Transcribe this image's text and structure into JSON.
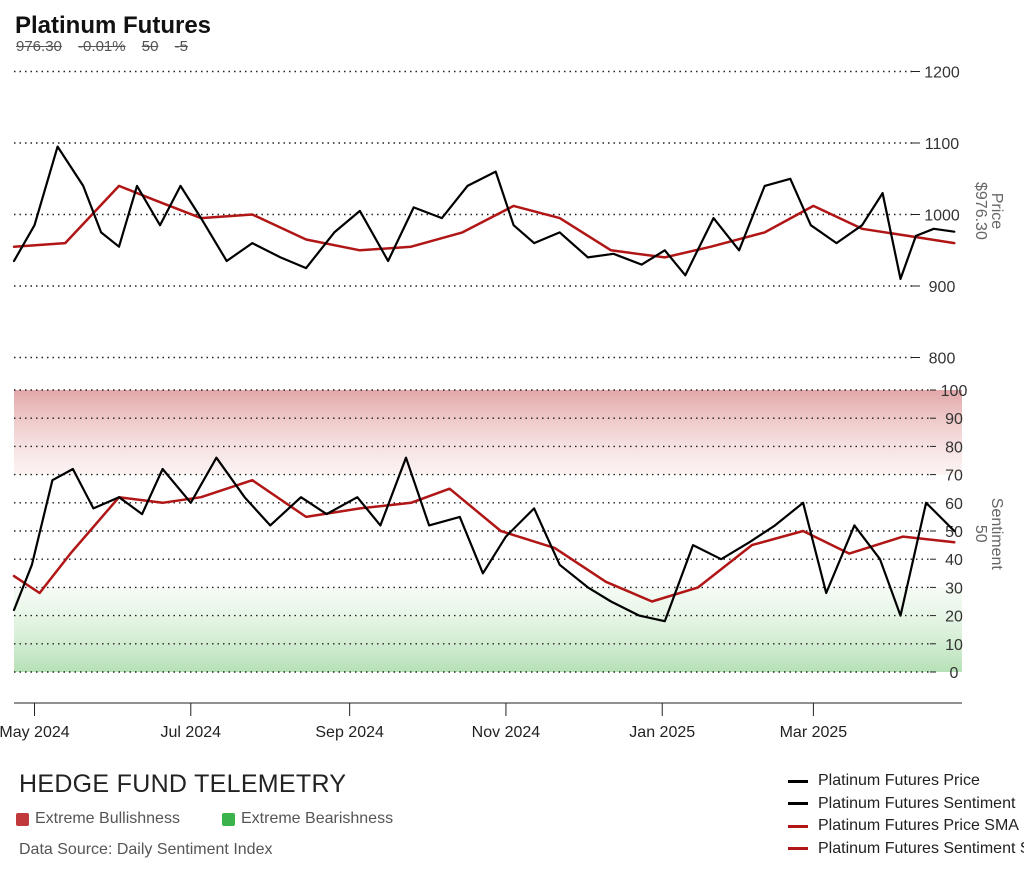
{
  "title": "Platinum Futures",
  "subtitle": [
    "976.30",
    "-0.01%",
    "50",
    "-5"
  ],
  "brand": "HEDGE FUND TELEMETRY",
  "keys": [
    {
      "label": "Extreme Bullishness",
      "color": "#c0393b"
    },
    {
      "label": "Extreme Bearishness",
      "color": "#3cb34a"
    }
  ],
  "source": "Data Source: Daily Sentiment Index",
  "legend": [
    {
      "label": "Platinum Futures Price",
      "color": "#000000"
    },
    {
      "label": "Platinum Futures Sentiment",
      "color": "#000000"
    },
    {
      "label": "Platinum Futures Price SMA",
      "color": "#b11616"
    },
    {
      "label": "Platinum Futures Sentiment SMA",
      "color": "#b11616"
    }
  ],
  "chart_data": [
    {
      "type": "line",
      "title": "Platinum Futures",
      "ylabel": "Price",
      "ylabel_value": "$976.30",
      "ylim": [
        800,
        1200
      ],
      "yticks": [
        800,
        900,
        1000,
        1100,
        1200
      ],
      "grid": true,
      "series": [
        {
          "name": "Platinum Futures Price",
          "color": "#000000",
          "x": [
            "2024-04-23",
            "2024-05-01",
            "2024-05-10",
            "2024-05-20",
            "2024-05-27",
            "2024-06-03",
            "2024-06-10",
            "2024-06-19",
            "2024-06-27",
            "2024-07-05",
            "2024-07-15",
            "2024-07-25",
            "2024-08-05",
            "2024-08-15",
            "2024-08-26",
            "2024-09-05",
            "2024-09-16",
            "2024-09-26",
            "2024-10-07",
            "2024-10-17",
            "2024-10-28",
            "2024-11-04",
            "2024-11-12",
            "2024-11-22",
            "2024-12-03",
            "2024-12-13",
            "2024-12-24",
            "2025-01-02",
            "2025-01-10",
            "2025-01-21",
            "2025-01-31",
            "2025-02-10",
            "2025-02-20",
            "2025-02-28",
            "2025-03-10",
            "2025-03-20",
            "2025-03-28",
            "2025-04-04",
            "2025-04-10",
            "2025-04-17",
            "2025-04-25"
          ],
          "values": [
            935,
            985,
            1095,
            1040,
            975,
            955,
            1040,
            985,
            1040,
            995,
            935,
            960,
            940,
            925,
            975,
            1005,
            935,
            1010,
            995,
            1040,
            1060,
            985,
            960,
            975,
            940,
            945,
            930,
            950,
            915,
            995,
            950,
            1040,
            1050,
            985,
            960,
            985,
            1030,
            910,
            970,
            980,
            976
          ]
        },
        {
          "name": "Platinum Futures Price SMA",
          "color": "#b11616",
          "x": [
            "2024-04-23",
            "2024-05-13",
            "2024-06-03",
            "2024-06-17",
            "2024-07-05",
            "2024-07-25",
            "2024-08-15",
            "2024-09-05",
            "2024-09-25",
            "2024-10-15",
            "2024-11-04",
            "2024-11-22",
            "2024-12-12",
            "2025-01-02",
            "2025-01-20",
            "2025-02-10",
            "2025-03-01",
            "2025-03-20",
            "2025-04-07",
            "2025-04-25"
          ],
          "values": [
            955,
            960,
            1040,
            1020,
            995,
            1000,
            965,
            950,
            955,
            975,
            1012,
            995,
            950,
            940,
            955,
            975,
            1012,
            980,
            970,
            960
          ]
        }
      ]
    },
    {
      "type": "line",
      "ylabel": "Sentiment",
      "ylabel_value": "50",
      "ylim": [
        0,
        100
      ],
      "yticks": [
        0,
        10,
        20,
        30,
        40,
        50,
        60,
        70,
        80,
        90,
        100
      ],
      "bands": [
        {
          "label": "Extreme Bullishness",
          "range": [
            70,
            100
          ]
        },
        {
          "label": "Extreme Bearishness",
          "range": [
            0,
            30
          ]
        }
      ],
      "series": [
        {
          "name": "Platinum Futures Sentiment",
          "color": "#000000",
          "x": [
            "2024-04-23",
            "2024-04-30",
            "2024-05-08",
            "2024-05-16",
            "2024-05-24",
            "2024-06-03",
            "2024-06-12",
            "2024-06-20",
            "2024-07-01",
            "2024-07-11",
            "2024-07-22",
            "2024-08-01",
            "2024-08-13",
            "2024-08-23",
            "2024-09-04",
            "2024-09-13",
            "2024-09-23",
            "2024-10-02",
            "2024-10-14",
            "2024-10-23",
            "2024-11-01",
            "2024-11-12",
            "2024-11-22",
            "2024-12-03",
            "2024-12-12",
            "2024-12-23",
            "2025-01-02",
            "2025-01-13",
            "2025-01-24",
            "2025-02-04",
            "2025-02-14",
            "2025-02-25",
            "2025-03-06",
            "2025-03-17",
            "2025-03-27",
            "2025-04-04",
            "2025-04-14",
            "2025-04-25"
          ],
          "values": [
            22,
            38,
            68,
            72,
            58,
            62,
            56,
            72,
            60,
            76,
            62,
            52,
            62,
            56,
            62,
            52,
            76,
            52,
            55,
            35,
            48,
            58,
            38,
            30,
            25,
            20,
            18,
            45,
            40,
            46,
            52,
            60,
            28,
            52,
            40,
            20,
            60,
            50
          ]
        },
        {
          "name": "Platinum Futures Sentiment SMA",
          "color": "#b11616",
          "x": [
            "2024-04-23",
            "2024-05-03",
            "2024-05-15",
            "2024-06-03",
            "2024-06-20",
            "2024-07-05",
            "2024-07-25",
            "2024-08-15",
            "2024-09-05",
            "2024-09-25",
            "2024-10-10",
            "2024-10-30",
            "2024-11-20",
            "2024-12-10",
            "2024-12-28",
            "2025-01-15",
            "2025-02-05",
            "2025-02-25",
            "2025-03-15",
            "2025-04-05",
            "2025-04-25"
          ],
          "values": [
            34,
            28,
            42,
            62,
            60,
            62,
            68,
            55,
            58,
            60,
            65,
            50,
            44,
            32,
            25,
            30,
            45,
            50,
            42,
            48,
            46
          ]
        }
      ]
    }
  ],
  "xaxis": {
    "ticks": [
      "May 2024",
      "Jul 2024",
      "Sep 2024",
      "Nov 2024",
      "Jan 2025",
      "Mar 2025"
    ],
    "tick_dates": [
      "2024-05-01",
      "2024-07-01",
      "2024-09-01",
      "2024-11-01",
      "2025-01-01",
      "2025-03-01"
    ],
    "range": [
      "2024-04-23",
      "2025-04-28"
    ]
  }
}
